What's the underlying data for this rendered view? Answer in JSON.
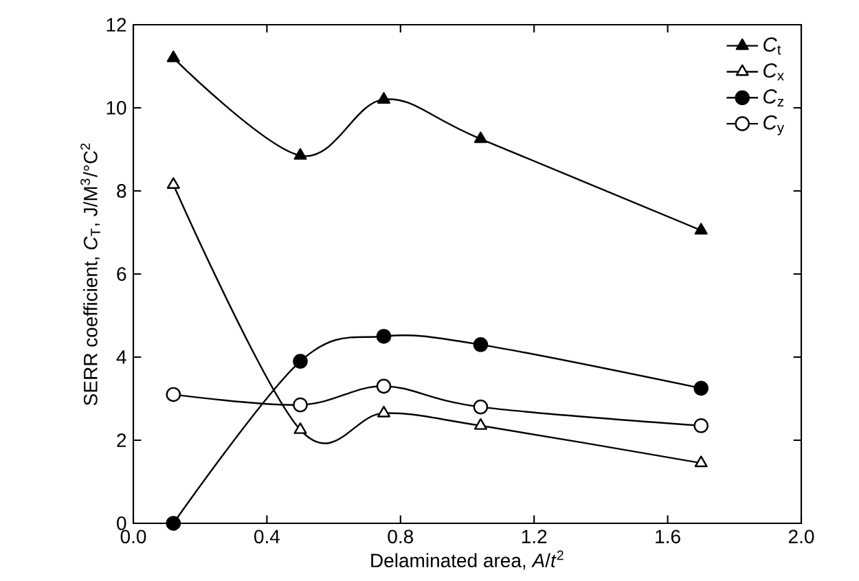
{
  "chart_data": {
    "type": "line",
    "xlabel": "Delaminated area, *A*/*t*$^{2}$",
    "ylabel": "SERR coefficient, *C*$_{T}$, J/M$^{3}$/°C$^{2}$",
    "x": [
      0.12,
      0.5,
      0.75,
      1.04,
      1.7
    ],
    "series": [
      {
        "name": "*C*$_{t}$",
        "color": "#000000",
        "marker": "triangle",
        "values": [
          11.2,
          8.85,
          10.2,
          9.25,
          7.05
        ]
      },
      {
        "name": "*C*$_{x}$",
        "color": "#ffffff",
        "marker": "triangle",
        "values": [
          8.15,
          2.25,
          2.65,
          2.35,
          1.45
        ]
      },
      {
        "name": "*C*$_{z}$",
        "color": "#000000",
        "marker": "circle",
        "values": [
          0,
          3.9,
          4.5,
          4.3,
          3.25
        ]
      },
      {
        "name": "*C*$_{y}$",
        "color": "#ffffff",
        "marker": "circle",
        "values": [
          3.1,
          2.85,
          3.3,
          2.8,
          2.35
        ]
      }
    ],
    "xlim": [
      0,
      2
    ],
    "ylim": [
      0,
      12
    ],
    "xticks": [
      {
        "value": 0,
        "label": "0.0"
      },
      {
        "value": 0.4,
        "label": "0.4"
      },
      {
        "value": 0.8,
        "label": "0.8"
      },
      {
        "value": 1.2,
        "label": "1.2"
      },
      {
        "value": 1.6,
        "label": "1.6"
      },
      {
        "value": 2,
        "label": "2.0"
      }
    ],
    "yticks": [
      0,
      2,
      4,
      6,
      8,
      10,
      12
    ],
    "legend": "top right",
    "grid": false,
    "line_style": "solid"
  }
}
